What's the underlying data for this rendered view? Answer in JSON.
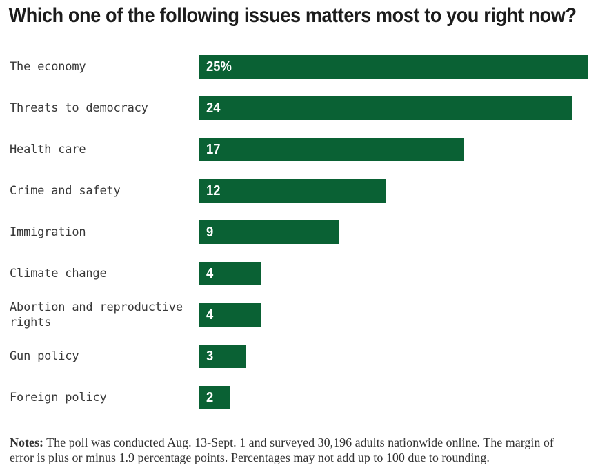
{
  "title": "Which one of the following issues matters most to you right now?",
  "notes": {
    "label": "Notes:",
    "text": " The poll was conducted Aug. 13-Sept. 1 and surveyed 30,196 adults nationwide online. The margin of error is plus or minus 1.9 percentage points. Percentages may not add up to 100 due to rounding."
  },
  "colors": {
    "bar": "#0a6134",
    "bar_value_text": "#ffffff",
    "title_text": "#1c1c1c",
    "category_text": "#383838",
    "notes_text": "#333333",
    "background": "#ffffff"
  },
  "chart_data": {
    "type": "bar",
    "orientation": "horizontal",
    "title": "Which one of the following issues matters most to you right now?",
    "categories": [
      "The economy",
      "Threats to democracy",
      "Health care",
      "Crime and safety",
      "Immigration",
      "Climate change",
      "Abortion and reproductive rights",
      "Gun policy",
      "Foreign policy"
    ],
    "values": [
      25,
      24,
      17,
      12,
      9,
      4,
      4,
      3,
      2
    ],
    "value_labels": [
      "25%",
      "24",
      "17",
      "12",
      "9",
      "4",
      "4",
      "3",
      "2"
    ],
    "xlabel": "",
    "ylabel": "",
    "xlim": [
      0,
      25
    ],
    "grid": false,
    "legend": false,
    "value_label_position": "inside-left"
  }
}
